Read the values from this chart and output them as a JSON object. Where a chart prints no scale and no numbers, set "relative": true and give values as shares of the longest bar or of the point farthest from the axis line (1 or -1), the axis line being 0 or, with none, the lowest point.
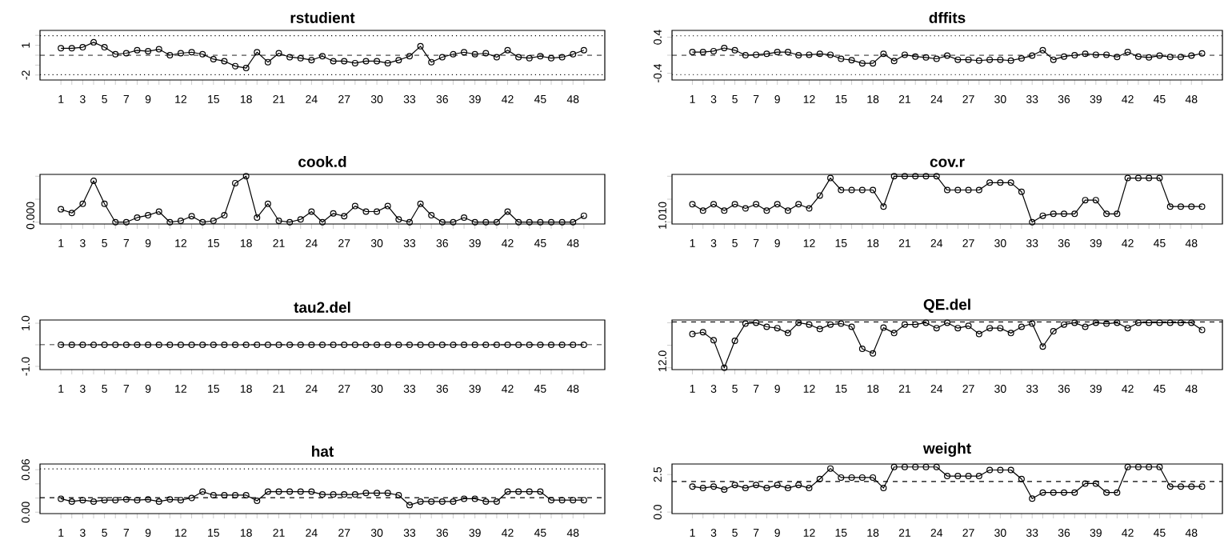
{
  "chart_data": [
    {
      "type": "line",
      "title": "rstudient",
      "categories": [
        "1",
        null,
        "3",
        null,
        "5",
        null,
        "7",
        null,
        "9",
        null,
        null,
        "12",
        null,
        null,
        "15",
        null,
        null,
        "18",
        null,
        null,
        "21",
        null,
        null,
        "24",
        null,
        null,
        "27",
        null,
        null,
        "30",
        null,
        null,
        "33",
        null,
        null,
        "36",
        null,
        null,
        "39",
        null,
        null,
        "42",
        null,
        null,
        "45",
        null,
        null,
        "48",
        null
      ],
      "values": [
        0.7,
        0.7,
        0.8,
        1.3,
        0.8,
        0.1,
        0.2,
        0.5,
        0.4,
        0.6,
        0,
        0.2,
        0.3,
        0.1,
        -0.4,
        -0.6,
        -1.1,
        -1.3,
        0.3,
        -0.7,
        0.2,
        -0.2,
        -0.3,
        -0.5,
        -0.1,
        -0.6,
        -0.6,
        -0.8,
        -0.6,
        -0.6,
        -0.8,
        -0.5,
        -0.1,
        0.9,
        -0.7,
        -0.2,
        0.1,
        0.3,
        0.1,
        0.2,
        -0.2,
        0.5,
        -0.2,
        -0.3,
        -0.1,
        -0.3,
        -0.2,
        0.1,
        0.5
      ],
      "color": "#000000",
      "marker": "circle",
      "ylim": [
        -2.5,
        2.5
      ],
      "yticks": [
        -2,
        {
          "value": -1,
          "label": null
        },
        {
          "value": 0,
          "label": null
        },
        1,
        {
          "value": 2,
          "label": null
        }
      ],
      "ref_lines": [
        {
          "axis": "y",
          "value": 0,
          "line_style": "dashed"
        },
        {
          "axis": "y",
          "value": -1.96,
          "line_style": "dotted"
        },
        {
          "axis": "y",
          "value": 1.96,
          "line_style": "dotted"
        }
      ]
    },
    {
      "type": "line",
      "title": "dffits",
      "categories": [
        "1",
        null,
        "3",
        null,
        "5",
        null,
        "7",
        null,
        "9",
        null,
        null,
        "12",
        null,
        null,
        "15",
        null,
        null,
        "18",
        null,
        null,
        "21",
        null,
        null,
        "24",
        null,
        null,
        "27",
        null,
        null,
        "30",
        null,
        null,
        "33",
        null,
        null,
        "36",
        null,
        null,
        "39",
        null,
        null,
        "42",
        null,
        null,
        "45",
        null,
        null,
        "48",
        null
      ],
      "values": [
        0.07,
        0.07,
        0.09,
        0.16,
        0.11,
        0,
        0.01,
        0.03,
        0.07,
        0.07,
        0,
        0.01,
        0.03,
        0.01,
        -0.08,
        -0.11,
        -0.18,
        -0.18,
        0.03,
        -0.13,
        0.01,
        -0.03,
        -0.05,
        -0.08,
        -0.01,
        -0.1,
        -0.1,
        -0.12,
        -0.1,
        -0.1,
        -0.12,
        -0.07,
        -0.01,
        0.11,
        -0.1,
        -0.03,
        0,
        0.03,
        0.01,
        0.01,
        -0.04,
        0.07,
        -0.03,
        -0.05,
        -0.01,
        -0.04,
        -0.04,
        -0.01,
        0.04
      ],
      "color": "#000000",
      "marker": "circle",
      "ylim": [
        -0.55,
        0.55
      ],
      "yticks": [
        -0.4,
        {
          "value": 0,
          "label": null
        },
        0.4
      ],
      "ref_lines": [
        {
          "axis": "y",
          "value": 0,
          "line_style": "dashed"
        },
        {
          "axis": "y",
          "value": -0.43,
          "line_style": "dotted"
        },
        {
          "axis": "y",
          "value": 0.43,
          "line_style": "dotted"
        }
      ]
    },
    {
      "type": "line",
      "title": "cook.d",
      "relative": true,
      "categories": [
        "1",
        null,
        "3",
        null,
        "5",
        null,
        "7",
        null,
        "9",
        null,
        null,
        "12",
        null,
        null,
        "15",
        null,
        null,
        "18",
        null,
        null,
        "21",
        null,
        null,
        "24",
        null,
        null,
        "27",
        null,
        null,
        "30",
        null,
        null,
        "33",
        null,
        null,
        "36",
        null,
        null,
        "39",
        null,
        null,
        "42",
        null,
        null,
        "45",
        null,
        null,
        "48",
        null
      ],
      "values": [
        0.28,
        0.2,
        0.4,
        0.9,
        0.4,
        0,
        0,
        0.1,
        0.15,
        0.23,
        0,
        0.03,
        0.13,
        0,
        0.03,
        0.15,
        0.85,
        1,
        0.1,
        0.4,
        0.03,
        0,
        0.06,
        0.23,
        0,
        0.19,
        0.13,
        0.35,
        0.23,
        0.23,
        0.35,
        0.06,
        0,
        0.4,
        0.15,
        0,
        0,
        0.1,
        0,
        0,
        0,
        0.23,
        0,
        0,
        0,
        0,
        0,
        0,
        0.14
      ],
      "color": "#000000",
      "marker": "circle",
      "annotations": [
        "0.000"
      ]
    },
    {
      "type": "line",
      "title": "cov.r",
      "relative": true,
      "categories": [
        "1",
        null,
        "3",
        null,
        "5",
        null,
        "7",
        null,
        "9",
        null,
        null,
        "12",
        null,
        null,
        "15",
        null,
        null,
        "18",
        null,
        null,
        "21",
        null,
        null,
        "24",
        null,
        null,
        "27",
        null,
        null,
        "30",
        null,
        null,
        "33",
        null,
        null,
        "36",
        null,
        null,
        "39",
        null,
        null,
        "42",
        null,
        null,
        "45",
        null,
        null,
        "48",
        null
      ],
      "values": [
        0.39,
        0.25,
        0.39,
        0.25,
        0.39,
        0.3,
        0.39,
        0.25,
        0.39,
        0.25,
        0.39,
        0.3,
        0.58,
        0.96,
        0.7,
        0.7,
        0.7,
        0.7,
        0.34,
        1,
        1,
        1,
        1,
        1,
        0.7,
        0.7,
        0.7,
        0.7,
        0.86,
        0.86,
        0.86,
        0.66,
        0,
        0.14,
        0.18,
        0.18,
        0.18,
        0.48,
        0.48,
        0.18,
        0.18,
        0.96,
        0.96,
        0.96,
        0.96,
        0.34,
        0.34,
        0.34,
        0.34
      ],
      "color": "#000000",
      "marker": "circle",
      "annotations": [
        "1.010"
      ]
    },
    {
      "type": "line",
      "title": "tau2.del",
      "categories": [
        "1",
        null,
        "3",
        null,
        "5",
        null,
        "7",
        null,
        "9",
        null,
        null,
        "12",
        null,
        null,
        "15",
        null,
        null,
        "18",
        null,
        null,
        "21",
        null,
        null,
        "24",
        null,
        null,
        "27",
        null,
        null,
        "30",
        null,
        null,
        "33",
        null,
        null,
        "36",
        null,
        null,
        "39",
        null,
        null,
        "42",
        null,
        null,
        "45",
        null,
        null,
        "48",
        null
      ],
      "values": [
        0,
        0,
        0,
        0,
        0,
        0,
        0,
        0,
        0,
        0,
        0,
        0,
        0,
        0,
        0,
        0,
        0,
        0,
        0,
        0,
        0,
        0,
        0,
        0,
        0,
        0,
        0,
        0,
        0,
        0,
        0,
        0,
        0,
        0,
        0,
        0,
        0,
        0,
        0,
        0,
        0,
        0,
        0,
        0,
        0,
        0,
        0,
        0,
        0
      ],
      "color": "#000000",
      "marker": "circle",
      "ylim": [
        -1.15,
        1.15
      ],
      "yticks": [
        {
          "value": -1,
          "label": "-1.0"
        },
        {
          "value": 0,
          "label": null
        },
        {
          "value": 1,
          "label": "1.0"
        }
      ],
      "ref_lines": [
        {
          "axis": "y",
          "value": 0,
          "line_style": "dashed"
        }
      ]
    },
    {
      "type": "line",
      "title": "QE.del",
      "relative": true,
      "categories": [
        "1",
        null,
        "3",
        null,
        "5",
        null,
        "7",
        null,
        "9",
        null,
        null,
        "12",
        null,
        null,
        "15",
        null,
        null,
        "18",
        null,
        null,
        "21",
        null,
        null,
        "24",
        null,
        null,
        "27",
        null,
        null,
        "30",
        null,
        null,
        "33",
        null,
        null,
        "36",
        null,
        null,
        "39",
        null,
        null,
        "42",
        null,
        null,
        "45",
        null,
        null,
        "48",
        null
      ],
      "values": [
        0.75,
        0.79,
        0.61,
        0,
        0.6,
        0.98,
        1,
        0.91,
        0.88,
        0.77,
        1,
        0.96,
        0.86,
        0.96,
        0.98,
        0.91,
        0.42,
        0.32,
        0.89,
        0.77,
        0.96,
        0.96,
        1,
        0.88,
        1,
        0.88,
        0.93,
        0.75,
        0.88,
        0.88,
        0.77,
        0.91,
        0.98,
        0.47,
        0.81,
        0.96,
        1,
        0.91,
        1,
        0.98,
        1,
        0.88,
        1,
        1,
        1,
        1,
        1,
        1,
        0.84
      ],
      "color": "#000000",
      "marker": "circle",
      "annotations": [
        "12.0"
      ],
      "ref_lines": [
        {
          "axis": "y",
          "value": 1.02,
          "line_style": "dashed"
        }
      ]
    },
    {
      "type": "line",
      "title": "hat",
      "categories": [
        "1",
        null,
        "3",
        null,
        "5",
        null,
        "7",
        null,
        "9",
        null,
        null,
        "12",
        null,
        null,
        "15",
        null,
        null,
        "18",
        null,
        null,
        "21",
        null,
        null,
        "24",
        null,
        null,
        "27",
        null,
        null,
        "30",
        null,
        null,
        "33",
        null,
        null,
        "36",
        null,
        null,
        "39",
        null,
        null,
        "42",
        null,
        null,
        "45",
        null,
        null,
        "48",
        null
      ],
      "values": [
        0.019,
        0.015,
        0.017,
        0.015,
        0.017,
        0.017,
        0.018,
        0.017,
        0.018,
        0.015,
        0.018,
        0.017,
        0.02,
        0.029,
        0.024,
        0.024,
        0.024,
        0.024,
        0.016,
        0.029,
        0.029,
        0.029,
        0.029,
        0.029,
        0.025,
        0.025,
        0.025,
        0.025,
        0.027,
        0.027,
        0.027,
        0.024,
        0.01,
        0.015,
        0.015,
        0.015,
        0.015,
        0.019,
        0.019,
        0.015,
        0.015,
        0.029,
        0.029,
        0.029,
        0.029,
        0.017,
        0.017,
        0.017,
        0.017
      ],
      "color": "#000000",
      "marker": "circle",
      "ylim": [
        -0.002,
        0.068
      ],
      "yticks": [
        {
          "value": 0,
          "label": "0.00"
        },
        {
          "value": 0.02,
          "label": null
        },
        {
          "value": 0.04,
          "label": null
        },
        {
          "value": 0.06,
          "label": "0.06"
        }
      ],
      "ref_lines": [
        {
          "axis": "y",
          "value": 0.0204,
          "line_style": "dashed"
        },
        {
          "axis": "y",
          "value": 0.061,
          "line_style": "dotted"
        }
      ]
    },
    {
      "type": "line",
      "title": "weight",
      "categories": [
        "1",
        null,
        "3",
        null,
        "5",
        null,
        "7",
        null,
        "9",
        null,
        null,
        "12",
        null,
        null,
        "15",
        null,
        null,
        "18",
        null,
        null,
        "21",
        null,
        null,
        "24",
        null,
        null,
        "27",
        null,
        null,
        "30",
        null,
        null,
        "33",
        null,
        null,
        "36",
        null,
        null,
        "39",
        null,
        null,
        "42",
        null,
        null,
        "45",
        null,
        null,
        "48",
        null
      ],
      "values": [
        1.7,
        1.6,
        1.7,
        1.5,
        1.8,
        1.6,
        1.8,
        1.6,
        1.8,
        1.6,
        1.8,
        1.6,
        2.2,
        2.9,
        2.3,
        2.3,
        2.3,
        2.3,
        1.6,
        3,
        3,
        3,
        3,
        3,
        2.4,
        2.4,
        2.4,
        2.4,
        2.8,
        2.8,
        2.8,
        2.2,
        0.9,
        1.3,
        1.3,
        1.3,
        1.3,
        1.9,
        1.9,
        1.3,
        1.3,
        3,
        3,
        3,
        3,
        1.7,
        1.7,
        1.7,
        1.7
      ],
      "color": "#000000",
      "marker": "circle",
      "ylim": [
        -0.1,
        3.2
      ],
      "yticks": [
        {
          "value": 0,
          "label": "0.0"
        },
        {
          "value": 2.5,
          "label": "2.5"
        }
      ],
      "ref_lines": [
        {
          "axis": "y",
          "value": 2.04,
          "line_style": "dashed"
        }
      ]
    }
  ]
}
